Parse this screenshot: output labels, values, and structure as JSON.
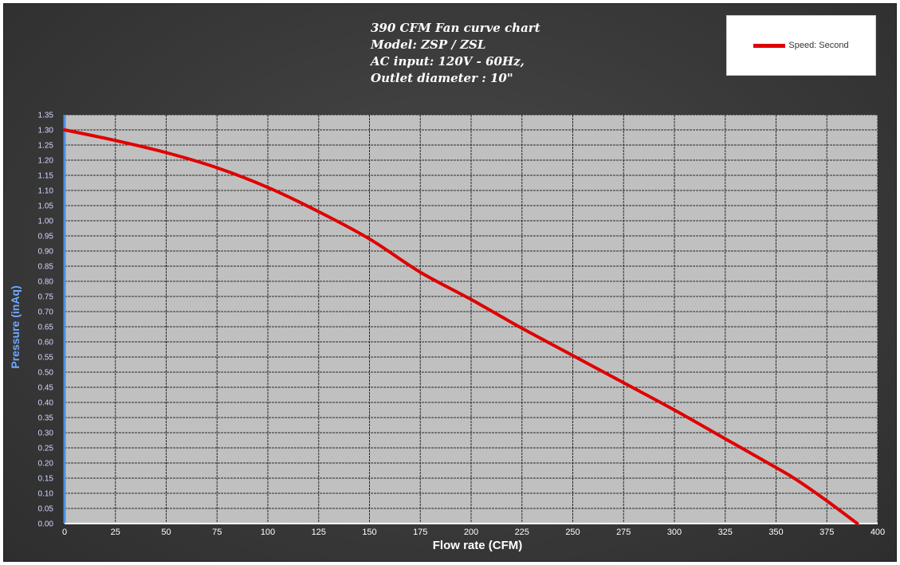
{
  "colors": {
    "background": "#3a3a3a",
    "plot_area": "#c0c0c0",
    "series": "#e00000",
    "y_axis": "#4a90e2",
    "grid": "#2a2a2a"
  },
  "chart_data": {
    "type": "line",
    "title": [
      "390 CFM Fan curve chart",
      "Model: ZSP / ZSL",
      "AC input: 120V - 60Hz,",
      "Outlet diameter : 10\""
    ],
    "xlabel": "Flow rate (CFM)",
    "ylabel": "Pressure (inAq)",
    "xlim": [
      0,
      400
    ],
    "ylim": [
      0,
      1.35
    ],
    "x_ticks": [
      "0",
      "25",
      "50",
      "75",
      "100",
      "125",
      "150",
      "175",
      "200",
      "225",
      "250",
      "275",
      "300",
      "325",
      "350",
      "375",
      "400"
    ],
    "y_ticks": [
      "0.00",
      "0.05",
      "0.10",
      "0.15",
      "0.20",
      "0.25",
      "0.30",
      "0.35",
      "0.40",
      "0.45",
      "0.50",
      "0.55",
      "0.60",
      "0.65",
      "0.70",
      "0.75",
      "0.80",
      "0.85",
      "0.90",
      "0.95",
      "1.00",
      "1.05",
      "1.10",
      "1.15",
      "1.20",
      "1.25",
      "1.30",
      "1.35"
    ],
    "grid": true,
    "legend_position": "top-right",
    "series": [
      {
        "name": "Speed: Second",
        "x": [
          0,
          25,
          50,
          75,
          100,
          125,
          150,
          175,
          200,
          225,
          250,
          275,
          300,
          325,
          350,
          360,
          375,
          390
        ],
        "y": [
          1.3,
          1.265,
          1.225,
          1.175,
          1.11,
          1.03,
          0.94,
          0.83,
          0.74,
          0.645,
          0.555,
          0.465,
          0.375,
          0.28,
          0.185,
          0.145,
          0.075,
          0.0
        ]
      }
    ]
  }
}
